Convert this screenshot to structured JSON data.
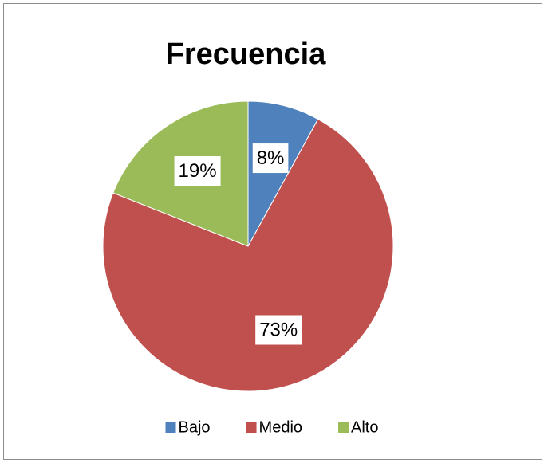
{
  "chart_data": {
    "type": "pie",
    "title": "Frecuencia",
    "categories": [
      "Bajo",
      "Medio",
      "Alto"
    ],
    "values": [
      8,
      73,
      19
    ],
    "value_labels": [
      "8%",
      "73%",
      "19%"
    ],
    "colors": [
      "#4f81bd",
      "#c0504d",
      "#9bbb59"
    ],
    "legend": "bottom"
  }
}
